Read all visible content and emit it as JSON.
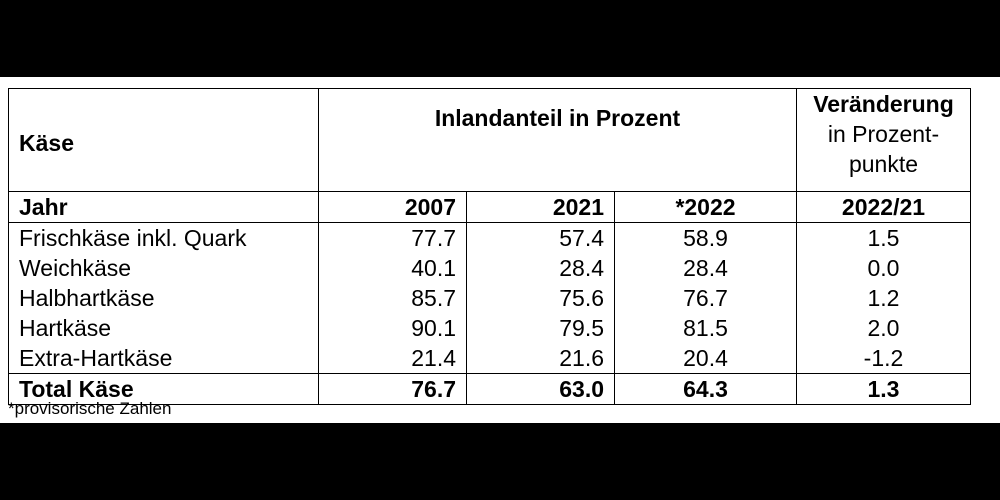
{
  "table": {
    "header": {
      "kaese_label": "Käse",
      "inland_label": "Inlandanteil in Prozent",
      "change_line1": "Veränderung",
      "change_line2": "in Prozent-",
      "change_line3": "punkte"
    },
    "subheader": {
      "jahr": "Jahr",
      "y2007": "2007",
      "y2021": "2021",
      "y2022": "*2022",
      "change": "2022/21"
    },
    "rows": [
      {
        "name": "Frischkäse inkl. Quark",
        "v2007": "77.7",
        "v2021": "57.4",
        "v2022": "58.9",
        "change": "1.5"
      },
      {
        "name": "Weichkäse",
        "v2007": "40.1",
        "v2021": "28.4",
        "v2022": "28.4",
        "change": "0.0"
      },
      {
        "name": "Halbhartkäse",
        "v2007": "85.7",
        "v2021": "75.6",
        "v2022": "76.7",
        "change": "1.2"
      },
      {
        "name": "Hartkäse",
        "v2007": "90.1",
        "v2021": "79.5",
        "v2022": "81.5",
        "change": "2.0"
      },
      {
        "name": "Extra-Hartkäse",
        "v2007": "21.4",
        "v2021": "21.6",
        "v2022": "20.4",
        "change": "-1.2"
      }
    ],
    "total": {
      "name": "Total Käse",
      "v2007": "76.7",
      "v2021": "63.0",
      "v2022": "64.3",
      "change": "1.3"
    }
  },
  "footnote": "*provisorische Zahlen"
}
